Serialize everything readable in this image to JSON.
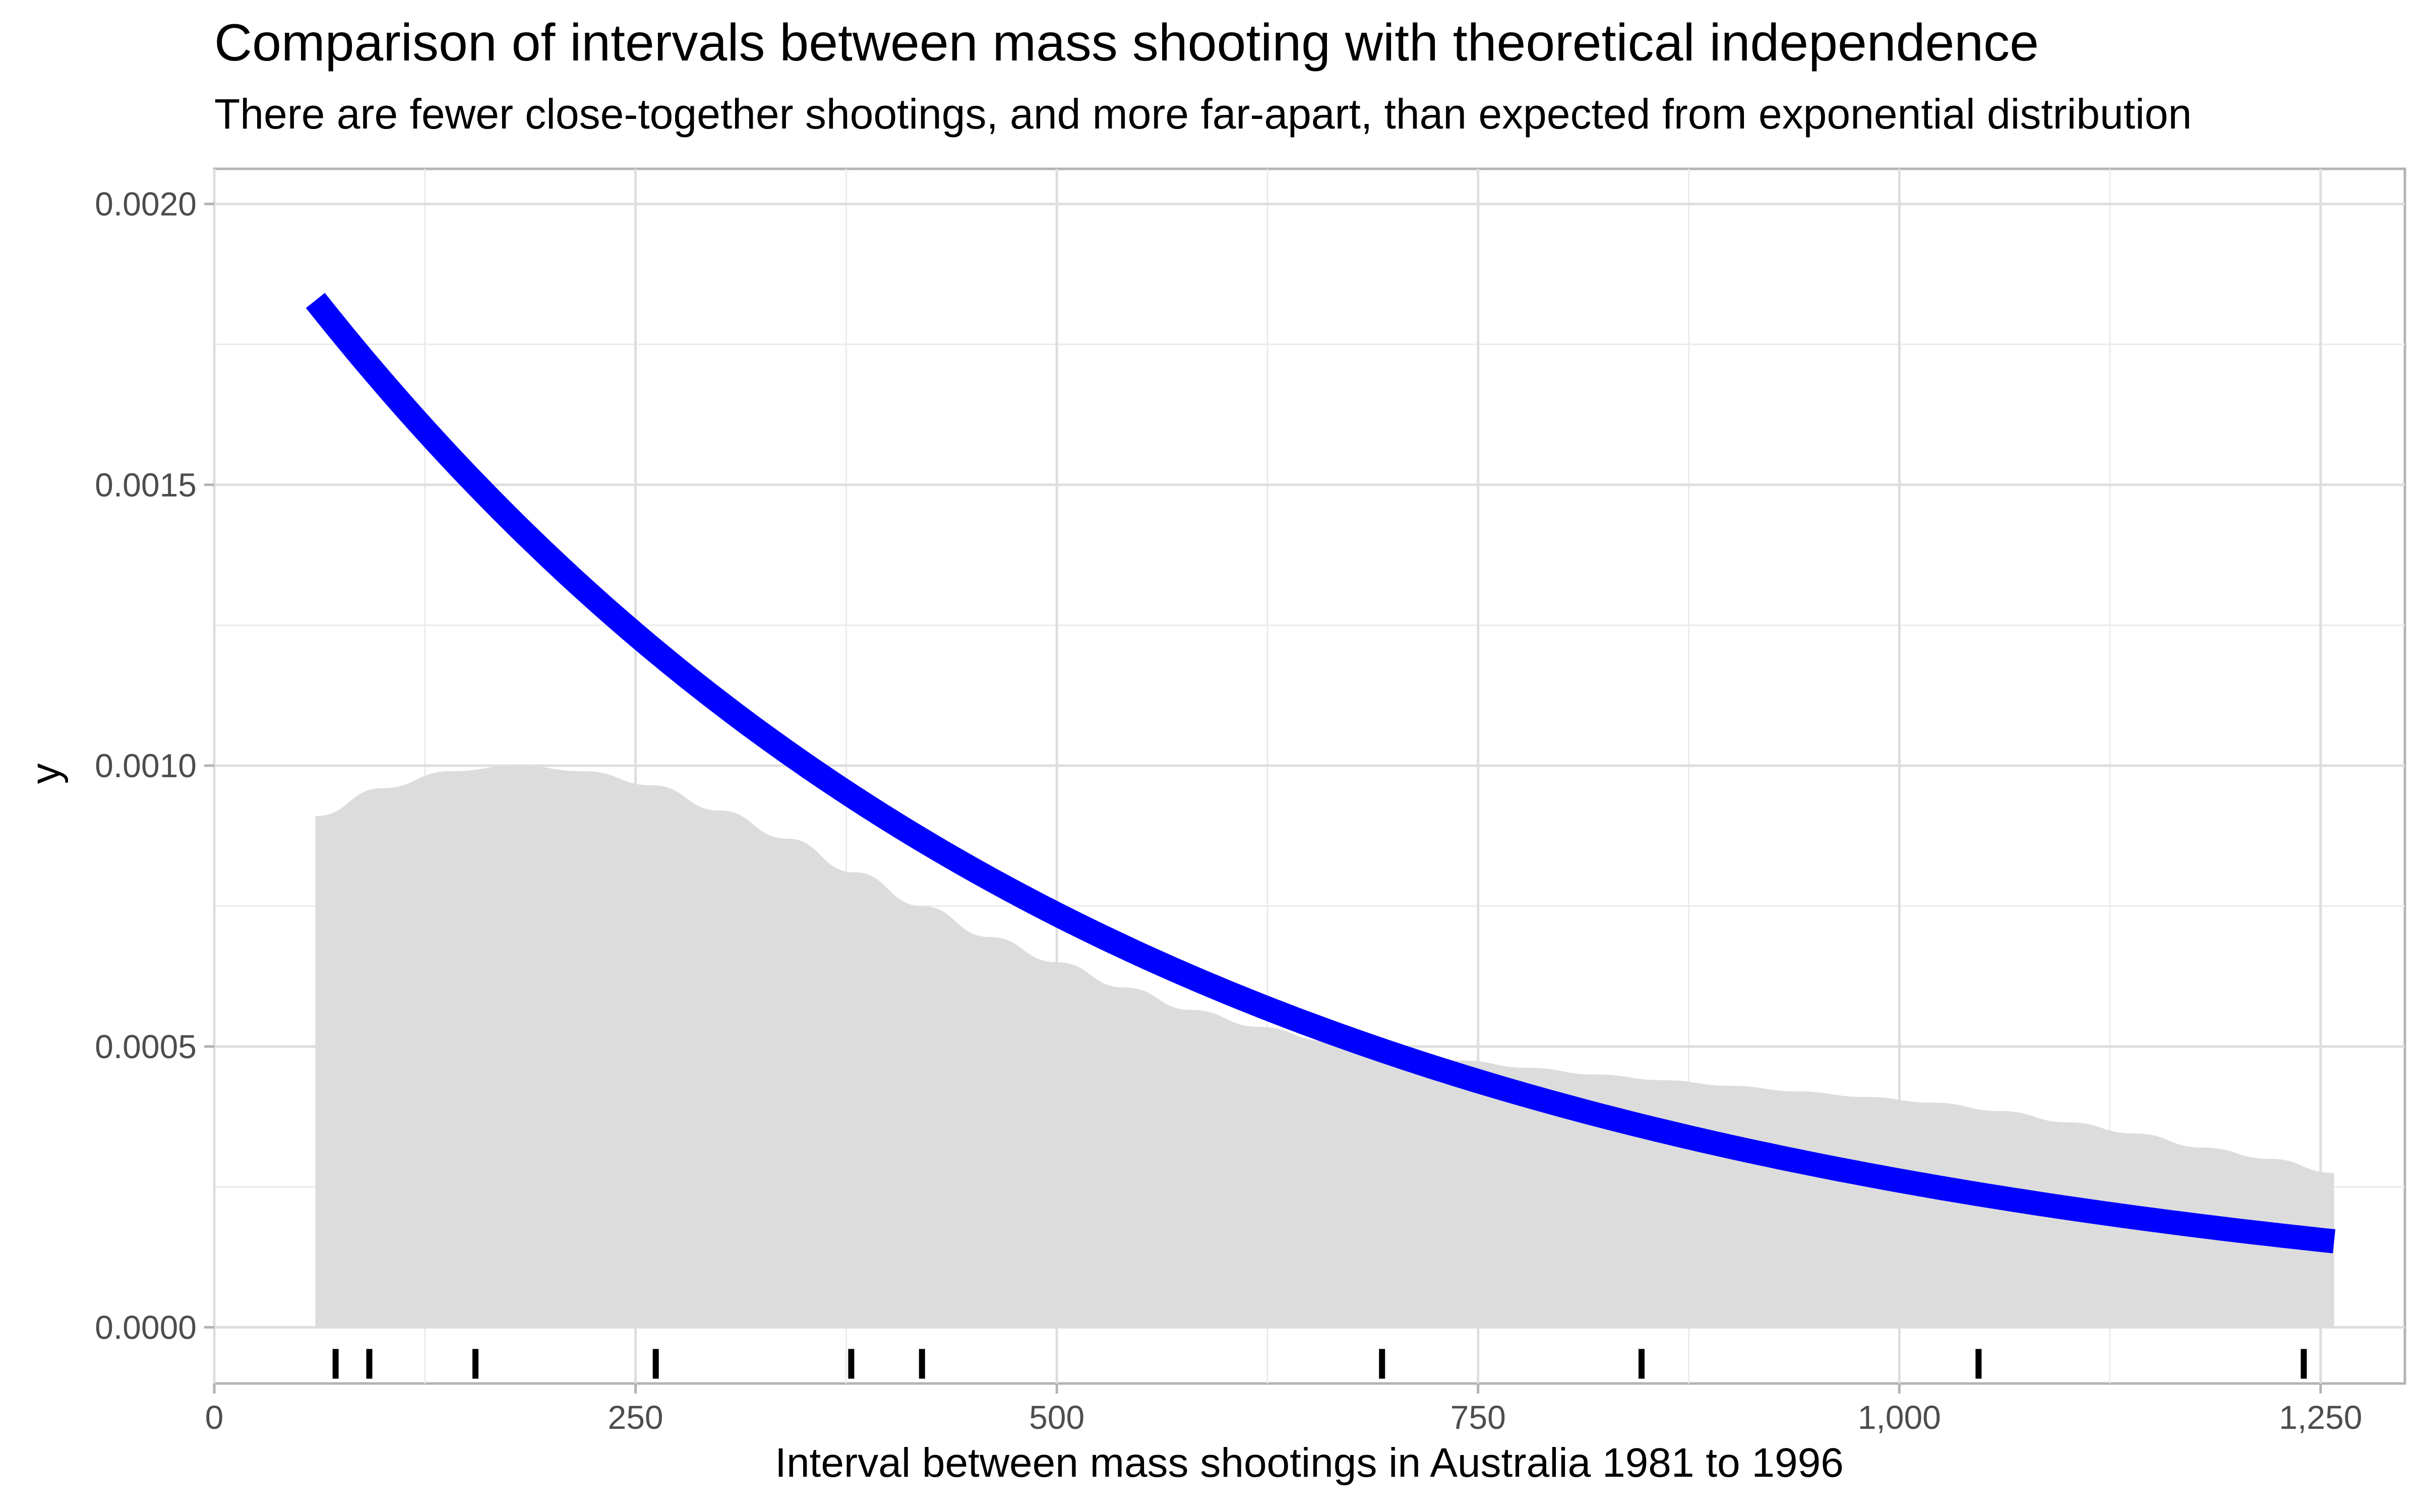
{
  "chart_data": {
    "type": "area",
    "title": "Comparison of intervals between mass shooting with theoretical independence",
    "subtitle": "There are fewer close-together shootings, and more far-apart, than expected from exponential distribution",
    "xlabel": "Interval between mass shootings in Australia 1981 to 1996",
    "ylabel": "y",
    "xlim": [
      0,
      1300
    ],
    "ylim": [
      -0.0001,
      0.0020625
    ],
    "x_ticks": [
      0,
      250,
      500,
      750,
      1000,
      1250
    ],
    "x_tick_labels": [
      "0",
      "250",
      "500",
      "750",
      "1,000",
      "1,250"
    ],
    "y_ticks": [
      0,
      0.0005,
      0.001,
      0.0015,
      0.002
    ],
    "y_tick_labels": [
      "0.0000",
      "0.0005",
      "0.0010",
      "0.0015",
      "0.0020"
    ],
    "grid": true,
    "series": [
      {
        "kind": "density-area",
        "color": "#dcdcdc",
        "x": [
          60,
          100,
          140,
          180,
          220,
          260,
          300,
          340,
          380,
          420,
          460,
          500,
          540,
          580,
          620,
          660,
          700,
          740,
          780,
          820,
          860,
          900,
          940,
          980,
          1020,
          1060,
          1100,
          1140,
          1180,
          1220,
          1258
        ],
        "y": [
          0.00091,
          0.00096,
          0.00099,
          0.001,
          0.00099,
          0.000965,
          0.00092,
          0.00087,
          0.00081,
          0.00075,
          0.000695,
          0.00065,
          0.000605,
          0.000565,
          0.000535,
          0.00051,
          0.00049,
          0.000475,
          0.000462,
          0.00045,
          0.00044,
          0.00043,
          0.00042,
          0.00041,
          0.0004,
          0.000385,
          0.000365,
          0.000345,
          0.00032,
          0.0003,
          0.000275
        ]
      },
      {
        "kind": "exponential-line",
        "color": "#0000ff",
        "rate": 0.00207,
        "x_range": [
          60,
          1258
        ]
      }
    ],
    "rug": [
      72,
      92,
      155,
      262,
      378,
      420,
      693,
      847,
      1047,
      1240
    ]
  }
}
